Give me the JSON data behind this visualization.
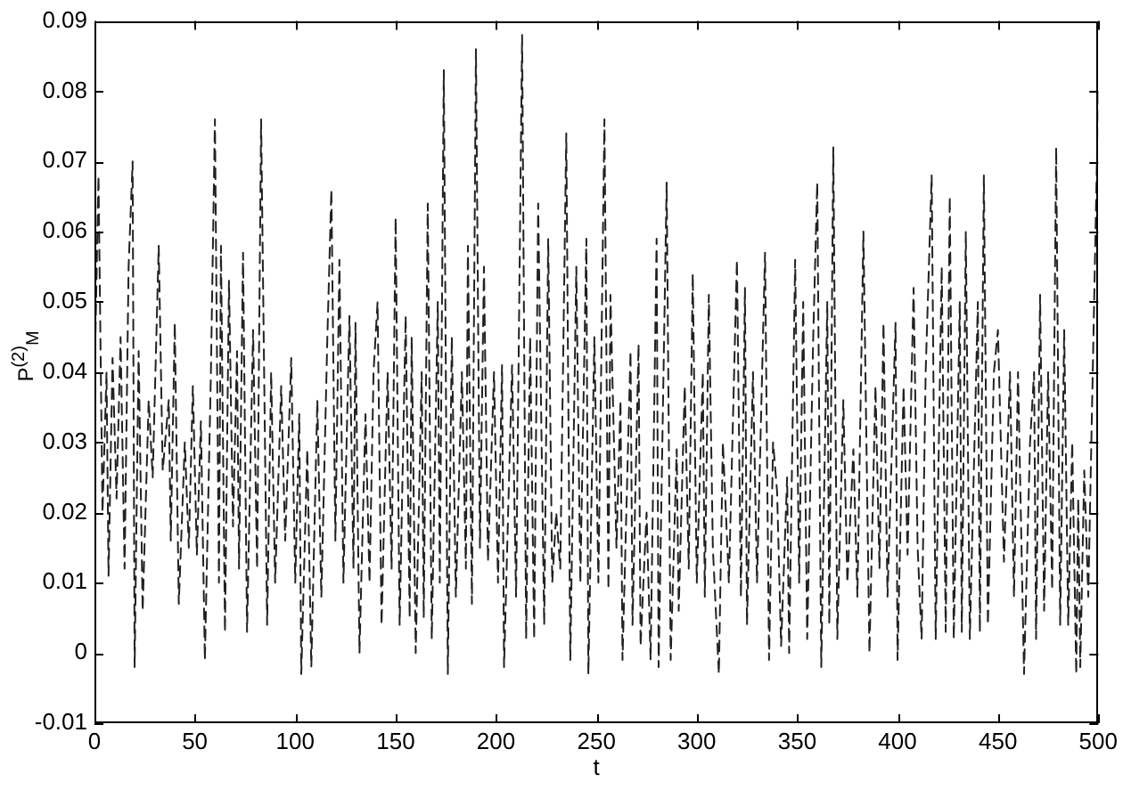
{
  "chart_data": {
    "type": "line",
    "xlabel": "t",
    "ylabel": "P$^{(2)}$$_{M}$",
    "color": "#222222",
    "line_style": "dashed",
    "x": [
      0,
      2,
      4,
      6,
      7,
      9,
      11,
      13,
      15,
      17,
      19,
      20,
      22,
      24,
      27,
      29,
      32,
      34,
      37,
      38,
      40,
      42,
      45,
      47,
      49,
      51,
      53,
      55,
      58,
      60,
      62,
      63,
      65,
      67,
      69,
      71,
      72,
      74,
      76,
      79,
      81,
      83,
      86,
      88,
      90,
      93,
      95,
      98,
      100,
      102,
      103,
      106,
      108,
      111,
      113,
      116,
      118,
      120,
      122,
      124,
      127,
      129,
      130,
      132,
      135,
      137,
      139,
      141,
      143,
      146,
      148,
      150,
      152,
      155,
      157,
      158,
      160,
      163,
      164,
      166,
      168,
      171,
      172,
      174,
      176,
      178,
      180,
      183,
      185,
      186,
      188,
      190,
      192,
      194,
      196,
      199,
      201,
      203,
      204,
      208,
      210,
      213,
      215,
      217,
      219,
      221,
      224,
      226,
      228,
      230,
      232,
      235,
      237,
      240,
      242,
      245,
      246,
      249,
      251,
      254,
      256,
      257,
      260,
      262,
      263,
      267,
      268,
      271,
      272,
      275,
      277,
      280,
      281,
      285,
      287,
      290,
      291,
      294,
      296,
      298,
      300,
      303,
      304,
      306,
      308,
      311,
      313,
      316,
      320,
      322,
      324,
      325,
      328,
      330,
      334,
      336,
      338,
      340,
      342,
      345,
      346,
      349,
      351,
      353,
      355,
      358,
      360,
      362,
      365,
      366,
      368,
      370,
      373,
      375,
      378,
      380,
      383,
      386,
      389,
      391,
      393,
      395,
      399,
      400,
      403,
      405,
      408,
      410,
      412,
      414,
      417,
      419,
      422,
      424,
      426,
      428,
      431,
      432,
      434,
      436,
      440,
      441,
      443,
      445,
      448,
      450,
      453,
      456,
      458,
      460,
      463,
      466,
      468,
      469,
      471,
      473,
      475,
      477,
      479,
      481,
      483,
      485,
      487,
      489,
      490,
      491,
      493,
      495,
      500
    ],
    "values": [
      0.038,
      0.068,
      0.02,
      0.04,
      0.011,
      0.042,
      0.022,
      0.045,
      0.012,
      0.055,
      0.07,
      -0.002,
      0.043,
      0.006,
      0.036,
      0.025,
      0.058,
      0.026,
      0.036,
      0.016,
      0.047,
      0.007,
      0.03,
      0.015,
      0.038,
      0.014,
      0.033,
      -0.001,
      0.04,
      0.076,
      0.01,
      0.058,
      0.003,
      0.053,
      0.018,
      0.043,
      0.012,
      0.057,
      0.003,
      0.046,
      0.012,
      0.076,
      0.004,
      0.04,
      0.01,
      0.038,
      0.016,
      0.042,
      0.01,
      0.034,
      -0.003,
      0.029,
      -0.002,
      0.036,
      0.008,
      0.045,
      0.066,
      0.016,
      0.056,
      0.01,
      0.048,
      0.012,
      0.047,
      0,
      0.034,
      0.01,
      0.04,
      0.05,
      0.004,
      0.04,
      0.012,
      0.062,
      0.004,
      0.048,
      0.005,
      0.045,
      0,
      0.04,
      0.005,
      0.064,
      0.002,
      0.05,
      0.01,
      0.083,
      -0.003,
      0.045,
      0.008,
      0.04,
      0.012,
      0.058,
      0.007,
      0.086,
      0.015,
      0.055,
      0.013,
      0.04,
      0.01,
      0.041,
      -0.002,
      0.041,
      0.008,
      0.088,
      0.002,
      0.045,
      0.002,
      0.064,
      0.004,
      0.059,
      0.01,
      0.02,
      0.012,
      0.074,
      -0.001,
      0.055,
      0.01,
      0.059,
      -0.003,
      0.045,
      0.01,
      0.076,
      0.009,
      0.051,
      0.015,
      0.036,
      -0.001,
      0.043,
      0.004,
      0.044,
      0.001,
      0.02,
      -0.001,
      0.059,
      -0.002,
      0.067,
      -0.001,
      0.029,
      0.006,
      0.038,
      0.012,
      0.054,
      0.01,
      0.04,
      0.008,
      0.051,
      0.015,
      -0.003,
      0.03,
      0.01,
      0.056,
      0.008,
      0.052,
      0.004,
      0.04,
      0.01,
      0.057,
      -0.001,
      0.03,
      0.023,
      0.001,
      0.025,
      0,
      0.056,
      0.01,
      0.05,
      0.002,
      0.045,
      0.067,
      -0.002,
      0.05,
      0.004,
      0.072,
      0.002,
      0.036,
      0.01,
      0.029,
      0.008,
      0.06,
      0,
      0.038,
      0.012,
      0.047,
      0.008,
      0.047,
      -0.001,
      0.038,
      0.014,
      0.052,
      0.015,
      0.002,
      0.04,
      0.068,
      0.002,
      0.055,
      0.003,
      0.065,
      0.002,
      0.05,
      0.003,
      0.06,
      0.002,
      0.05,
      0.003,
      0.068,
      0.004,
      0.04,
      0.046,
      0.013,
      0.04,
      0.008,
      0.04,
      -0.003,
      0.03,
      0.04,
      0.002,
      0.051,
      0.006,
      0.04,
      0.009,
      0.072,
      0.004,
      0.046,
      0.004,
      0.03,
      -0.003,
      0.022,
      -0.002,
      0.026,
      0.008,
      0.08
    ],
    "xlim": [
      0,
      500
    ],
    "xticks": [
      0,
      50,
      100,
      150,
      200,
      250,
      300,
      350,
      400,
      450,
      500
    ],
    "ylim": [
      -0.01,
      0.09
    ],
    "yticks": [
      -0.01,
      0,
      0.01,
      0.02,
      0.03,
      0.04,
      0.05,
      0.06,
      0.07,
      0.08,
      0.09
    ]
  }
}
